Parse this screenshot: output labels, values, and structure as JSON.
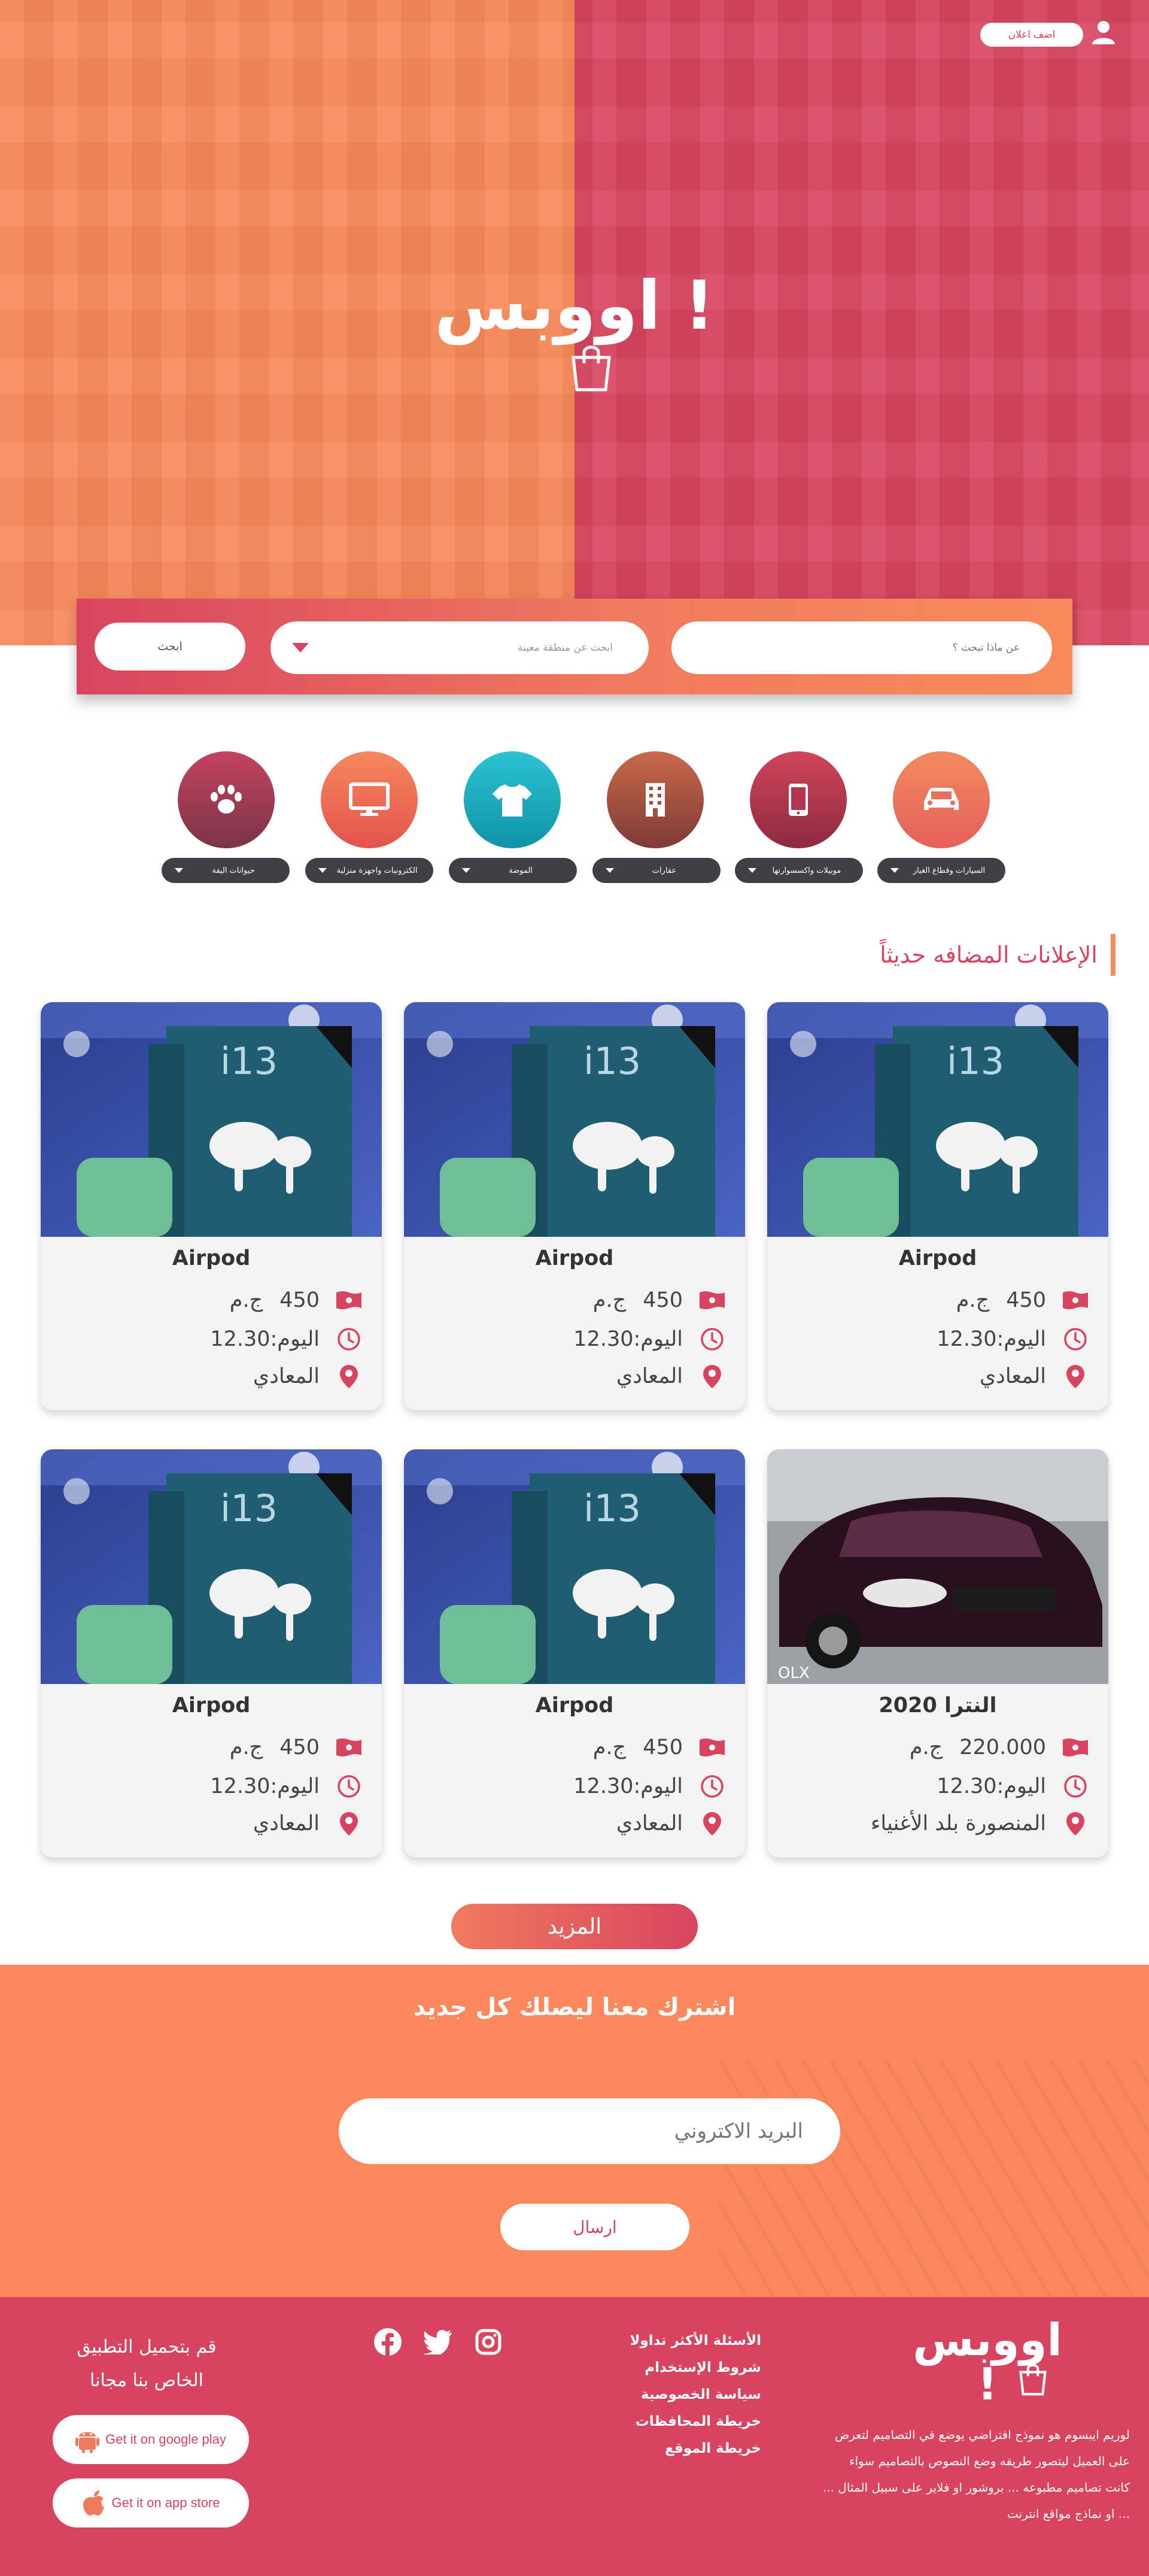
{
  "header": {
    "add_ad_label": "اضف اعلان",
    "logo_text": "اووبس !"
  },
  "search": {
    "what_placeholder": "عن ماذا تبحث ؟",
    "region_placeholder": "ابحث عن منطقة معينة",
    "search_button": "ابحث"
  },
  "categories": [
    {
      "label": "السيارات وقطاع الغيار",
      "icon": "car-icon",
      "color": "#f07a5e"
    },
    {
      "label": "موبيلات واكسسوارتها",
      "icon": "mobile-icon",
      "color": "#c1334d"
    },
    {
      "label": "عقارات",
      "icon": "building-icon",
      "color": "#b85a42"
    },
    {
      "label": "الموضة",
      "icon": "shirt-icon",
      "color": "#1db4c6"
    },
    {
      "label": "الكترونيات واجهزة منزلية",
      "icon": "monitor-icon",
      "color": "#f07a5e"
    },
    {
      "label": "حيوانات اليفة",
      "icon": "paw-icon",
      "color": "#a93a55"
    }
  ],
  "recent": {
    "title": "الإعلانات المضافه حديثاً"
  },
  "listings": [
    {
      "title": "Airpod",
      "price": "450",
      "currency": "ج.م",
      "time": "اليوم:12.30",
      "location": "المعادي",
      "image": "airpods"
    },
    {
      "title": "Airpod",
      "price": "450",
      "currency": "ج.م",
      "time": "اليوم:12.30",
      "location": "المعادي",
      "image": "airpods"
    },
    {
      "title": "Airpod",
      "price": "450",
      "currency": "ج.م",
      "time": "اليوم:12.30",
      "location": "المعادي",
      "image": "airpods"
    },
    {
      "title": "النترا 2020",
      "price": "220.000",
      "currency": "ج.م",
      "time": "اليوم:12.30",
      "location": "المنصورة بلد الأغنياء",
      "image": "car"
    },
    {
      "title": "Airpod",
      "price": "450",
      "currency": "ج.م",
      "time": "اليوم:12.30",
      "location": "المعادي",
      "image": "airpods"
    },
    {
      "title": "Airpod",
      "price": "450",
      "currency": "ج.م",
      "time": "اليوم:12.30",
      "location": "المعادي",
      "image": "airpods"
    }
  ],
  "more_button": "المزيد",
  "subscribe": {
    "title": "اشترك معنا ليصلك كل جديد",
    "email_placeholder": "البريد الاكتروني",
    "send_button": "ارسال"
  },
  "footer": {
    "logo_text": "اووبس !",
    "about_lines": [
      "لوريم ايبسوم هو نموذج افتراضي يوضع في التصاميم لتعرض",
      "على العميل ليتصور طريقه وضع النصوص بالتصاميم سواء",
      "كانت تصاميم مطبوعه ... بروشور او فلاير على سبيل المثال ...",
      "... او نماذج مواقع انترنت"
    ],
    "links": [
      "الأسئلة الأكثر تداولا",
      "شروط الإستخدام",
      "سياسة الخصوصية",
      "خريطة المحافظات",
      "خريطة الموقع"
    ],
    "social": [
      "instagram-icon",
      "twitter-icon",
      "facebook-icon"
    ],
    "app_text_1": "قم بتحميل التطبيق",
    "app_text_2": "الخاص بنا مجانا",
    "google_play_label": "Get it on google play",
    "app_store_label": "Get it on app store"
  },
  "colors": {
    "primary": "#d8445f",
    "accent": "#f98a5a",
    "dark_pill": "#3f3f45"
  }
}
